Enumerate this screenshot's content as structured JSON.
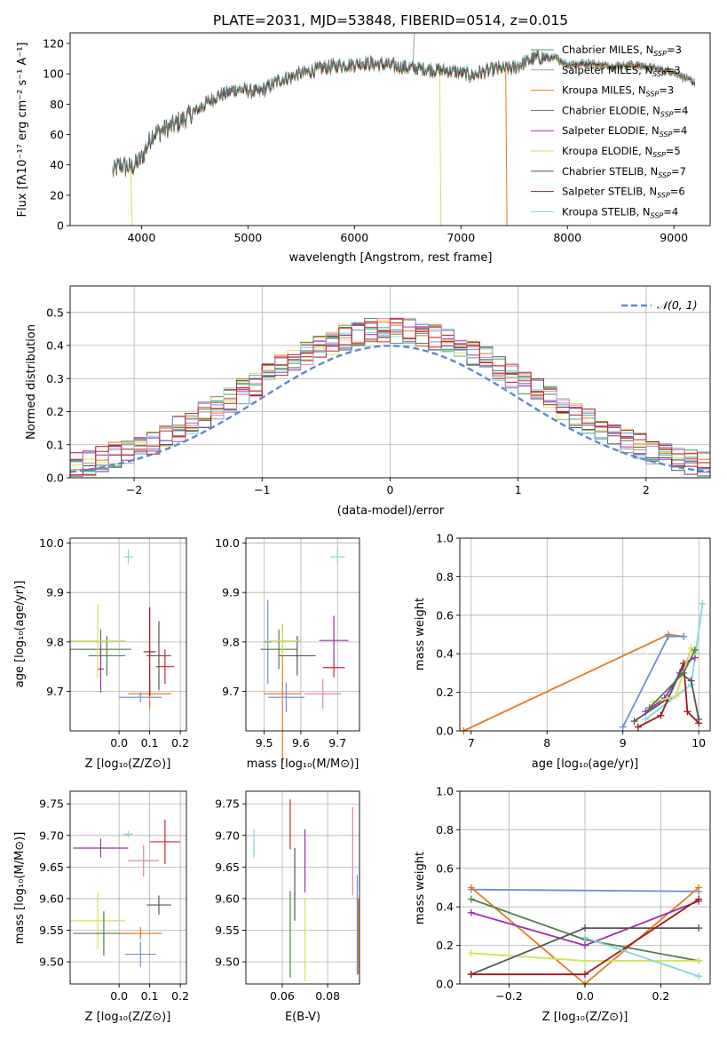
{
  "figure": {
    "title": "PLATE=2031, MJD=53848, FIBERID=0514, z=0.015"
  },
  "colors": {
    "Chabrier MILES": "#4a9a6a",
    "Salpeter MILES": "#9e9ea0",
    "Kroupa MILES": "#e07b20",
    "Chabrier ELODIE": "#4f7f4a",
    "Salpeter ELODIE": "#9b30a8",
    "Kroupa ELODIE": "#d4e156",
    "Chabrier STELIB": "#555555",
    "Salpeter STELIB": "#a01818",
    "Kroupa STELIB": "#7fd8d8",
    "extra1": "#6a8fdc",
    "extra2": "#e47fb0",
    "extra3": "#c82a2a",
    "gauss": "#5b87d6"
  },
  "chart_data": [
    {
      "id": "spectrum",
      "type": "line",
      "title": "PLATE=2031, MJD=53848, FIBERID=0514, z=0.015",
      "xlabel": "wavelength [Angstrom, rest frame]",
      "ylabel": "Flux [fλ10⁻¹⁷ erg cm⁻² s⁻¹ A⁻¹]",
      "xlim": [
        3330,
        9340
      ],
      "ylim": [
        0,
        127
      ],
      "xticks": [
        4000,
        5000,
        6000,
        7000,
        8000,
        9000
      ],
      "yticks": [
        0,
        20,
        40,
        60,
        80,
        100,
        120
      ],
      "legend": [
        "Chabrier MILES, N_SSP=3",
        "Salpeter MILES, N_SSP=3",
        "Kroupa MILES, N_SSP=3",
        "Chabrier ELODIE, N_SSP=4",
        "Salpeter ELODIE, N_SSP=4",
        "Kroupa ELODIE, N_SSP=5",
        "Chabrier STELIB, N_SSP=7",
        "Salpeter STELIB, N_SSP=6",
        "Kroupa STELIB, N_SSP=4"
      ],
      "legend_main": [
        "Chabrier MILES, N",
        "Salpeter MILES, N",
        "Kroupa MILES, N",
        "Chabrier ELODIE, N",
        "Salpeter ELODIE, N",
        "Kroupa ELODIE, N",
        "Chabrier STELIB, N",
        "Salpeter STELIB, N",
        "Kroupa STELIB, N"
      ],
      "legend_sub": "SSP",
      "legend_val": [
        "=3",
        "=3",
        "=3",
        "=4",
        "=4",
        "=5",
        "=7",
        "=6",
        "=4"
      ],
      "legend_placement": "upper right",
      "continuum": [
        [
          3730,
          35
        ],
        [
          3800,
          40
        ],
        [
          3900,
          38
        ],
        [
          4000,
          44
        ],
        [
          4100,
          60
        ],
        [
          4300,
          66
        ],
        [
          4500,
          75
        ],
        [
          4700,
          85
        ],
        [
          4900,
          90
        ],
        [
          5100,
          88
        ],
        [
          5300,
          96
        ],
        [
          5500,
          100
        ],
        [
          5700,
          104
        ],
        [
          5900,
          106
        ],
        [
          6100,
          107
        ],
        [
          6300,
          106
        ],
        [
          6500,
          104
        ],
        [
          6700,
          103
        ],
        [
          6900,
          102
        ],
        [
          7100,
          99
        ],
        [
          7300,
          103
        ],
        [
          7500,
          104
        ],
        [
          7700,
          111
        ],
        [
          7900,
          110
        ],
        [
          8000,
          106
        ],
        [
          8200,
          107
        ],
        [
          8400,
          105
        ],
        [
          8600,
          106
        ],
        [
          8800,
          104
        ],
        [
          9000,
          101
        ],
        [
          9200,
          94
        ]
      ],
      "spikes": [
        [
          3900,
          0
        ],
        [
          6550,
          127
        ],
        [
          6800,
          0
        ],
        [
          7420,
          0
        ]
      ]
    },
    {
      "id": "residuals",
      "type": "bar",
      "xlabel": "(data-model)/error",
      "ylabel": "Normed distribution",
      "xlim": [
        -2.5,
        2.5
      ],
      "ylim": [
        0,
        0.58
      ],
      "xticks": [
        -2,
        -1,
        0,
        1,
        2
      ],
      "xtick_labels": [
        "−2",
        "−1",
        "0",
        "1",
        "2"
      ],
      "yticks": [
        0,
        0.1,
        0.2,
        0.3,
        0.4,
        0.5
      ],
      "ytick_labels": [
        "0.0",
        "0.1",
        "0.2",
        "0.3",
        "0.4",
        "0.5"
      ],
      "bin_width": 0.1,
      "legend": "𝒩(0, 1)",
      "legend_placement": "upper right"
    },
    {
      "id": "age_vs_Z",
      "type": "scatter",
      "xlabel": "Z [log₁₀(Z/Z⊙)]",
      "ylabel": "age  [log₁₀(age/yr)]",
      "xlim": [
        -0.16,
        0.22
      ],
      "ylim": [
        9.62,
        10.01
      ],
      "xticks": [
        0.0,
        0.1,
        0.2
      ],
      "xtick_labels": [
        "0.0",
        "0.1",
        "0.2"
      ],
      "yticks": [
        9.7,
        9.8,
        9.9,
        10.0
      ],
      "ytick_labels": [
        "9.7",
        "9.8",
        "9.9",
        "10.0"
      ],
      "points": [
        {
          "x": 0.03,
          "y": 9.972,
          "xe": 0.015,
          "ye": 0.03,
          "c": "Kroupa STELIB"
        },
        {
          "x": 0.1,
          "y": 9.695,
          "xe": 0.07,
          "ye": 0.06,
          "c": "Kroupa MILES"
        },
        {
          "x": 0.1,
          "y": 9.78,
          "xe": 0.02,
          "ye": 0.18,
          "c": "Salpeter STELIB"
        },
        {
          "x": 0.15,
          "y": 9.75,
          "xe": 0.03,
          "ye": 0.07,
          "c": "extra3"
        },
        {
          "x": 0.13,
          "y": 9.772,
          "xe": 0.04,
          "ye": 0.14,
          "c": "Chabrier STELIB"
        },
        {
          "x": 0.07,
          "y": 9.688,
          "xe": 0.07,
          "ye": 0.02,
          "c": "extra1"
        },
        {
          "x": -0.04,
          "y": 9.772,
          "xe": 0.06,
          "ye": 0.08,
          "c": "Chabrier ELODIE"
        },
        {
          "x": -0.06,
          "y": 9.785,
          "xe": 0.1,
          "ye": 0.08,
          "c": "Chabrier ELODIE"
        },
        {
          "x": -0.06,
          "y": 9.745,
          "xe": 0.01,
          "ye": 0.095,
          "c": "Salpeter ELODIE"
        },
        {
          "x": -0.07,
          "y": 9.802,
          "xe": 0.09,
          "ye": 0.15,
          "c": "Kroupa ELODIE"
        }
      ]
    },
    {
      "id": "age_vs_mass",
      "type": "scatter",
      "xlabel": "mass [log₁₀(M/M⊙)]",
      "ylabel": "",
      "xlim": [
        9.45,
        9.76
      ],
      "ylim": [
        9.62,
        10.01
      ],
      "xticks": [
        9.5,
        9.6,
        9.7
      ],
      "xtick_labels": [
        "9.5",
        "9.6",
        "9.7"
      ],
      "yticks": [
        9.7,
        9.8,
        9.9,
        10.0
      ],
      "ytick_labels": [
        "9.7",
        "9.8",
        "9.9",
        "10.0"
      ],
      "points": [
        {
          "x": 9.7,
          "y": 9.972,
          "xe": 0.02,
          "ye": 0.03,
          "c": "Kroupa STELIB"
        },
        {
          "x": 9.55,
          "y": 9.695,
          "xe": 0.05,
          "ye": 0.28,
          "c": "Kroupa MILES"
        },
        {
          "x": 9.51,
          "y": 9.8,
          "xe": 0.01,
          "ye": 0.17,
          "c": "extra1"
        },
        {
          "x": 9.69,
          "y": 9.748,
          "xe": 0.03,
          "ye": 0.04,
          "c": "extra3"
        },
        {
          "x": 9.69,
          "y": 9.803,
          "xe": 0.04,
          "ye": 0.1,
          "c": "Salpeter ELODIE"
        },
        {
          "x": 9.59,
          "y": 9.772,
          "xe": 0.05,
          "ye": 0.08,
          "c": "Chabrier STELIB"
        },
        {
          "x": 9.54,
          "y": 9.785,
          "xe": 0.05,
          "ye": 0.08,
          "c": "Chabrier ELODIE"
        },
        {
          "x": 9.55,
          "y": 9.802,
          "xe": 0.05,
          "ye": 0.06,
          "c": "Kroupa ELODIE"
        },
        {
          "x": 9.66,
          "y": 9.695,
          "xe": 0.05,
          "ye": 0.06,
          "c": "extra2"
        },
        {
          "x": 9.56,
          "y": 9.688,
          "xe": 0.05,
          "ye": 0.06,
          "c": "extra1"
        }
      ]
    },
    {
      "id": "mw_vs_age",
      "type": "line",
      "xlabel": "age  [log₁₀(age/yr)]",
      "ylabel": "mass weight",
      "xlim": [
        6.85,
        10.15
      ],
      "ylim": [
        0,
        1
      ],
      "xticks": [
        7,
        8,
        9,
        10
      ],
      "yticks": [
        0,
        0.2,
        0.4,
        0.6,
        0.8,
        1.0
      ],
      "ytick_labels": [
        "0.0",
        "0.2",
        "0.4",
        "0.6",
        "0.8",
        "1.0"
      ],
      "series": [
        {
          "c": "Kroupa MILES",
          "pts": [
            [
              6.9,
              0.0
            ],
            [
              9.6,
              0.5
            ],
            [
              9.8,
              0.49
            ]
          ]
        },
        {
          "c": "extra1",
          "pts": [
            [
              9.0,
              0.02
            ],
            [
              9.6,
              0.49
            ],
            [
              9.8,
              0.49
            ]
          ]
        },
        {
          "c": "Kroupa STELIB",
          "pts": [
            [
              9.3,
              0.06
            ],
            [
              9.9,
              0.24
            ],
            [
              10.05,
              0.66
            ]
          ]
        },
        {
          "c": "Salpeter STELIB",
          "pts": [
            [
              9.2,
              0.02
            ],
            [
              9.5,
              0.08
            ],
            [
              9.8,
              0.35
            ],
            [
              9.85,
              0.1
            ],
            [
              10.0,
              0.04
            ]
          ]
        },
        {
          "c": "Chabrier STELIB",
          "pts": [
            [
              9.15,
              0.05
            ],
            [
              9.6,
              0.17
            ],
            [
              9.75,
              0.3
            ],
            [
              9.9,
              0.26
            ],
            [
              10.0,
              0.06
            ]
          ]
        },
        {
          "c": "Salpeter ELODIE",
          "pts": [
            [
              9.3,
              0.1
            ],
            [
              9.55,
              0.17
            ],
            [
              9.85,
              0.36
            ],
            [
              9.95,
              0.38
            ]
          ]
        },
        {
          "c": "Kroupa ELODIE",
          "pts": [
            [
              9.4,
              0.15
            ],
            [
              9.7,
              0.18
            ],
            [
              9.9,
              0.43
            ],
            [
              9.95,
              0.41
            ]
          ]
        },
        {
          "c": "Chabrier ELODIE",
          "pts": [
            [
              9.35,
              0.12
            ],
            [
              9.8,
              0.3
            ],
            [
              9.95,
              0.42
            ]
          ]
        }
      ]
    },
    {
      "id": "mass_vs_Z",
      "type": "scatter",
      "xlabel": "Z [log₁₀(Z/Z⊙)]",
      "ylabel": "mass [log₁₀(M/M⊙)]",
      "xlim": [
        -0.16,
        0.22
      ],
      "ylim": [
        9.465,
        9.77
      ],
      "xticks": [
        0.0,
        0.1,
        0.2
      ],
      "xtick_labels": [
        "0.0",
        "0.1",
        "0.2"
      ],
      "yticks": [
        9.5,
        9.55,
        9.6,
        9.65,
        9.7,
        9.75
      ],
      "ytick_labels": [
        "9.50",
        "9.55",
        "9.60",
        "9.65",
        "9.70",
        "9.75"
      ],
      "points": [
        {
          "x": 0.03,
          "y": 9.702,
          "xe": 0.015,
          "ye": 0.01,
          "c": "Kroupa STELIB"
        },
        {
          "x": 0.15,
          "y": 9.69,
          "xe": 0.05,
          "ye": 0.07,
          "c": "extra3"
        },
        {
          "x": 0.08,
          "y": 9.66,
          "xe": 0.05,
          "ye": 0.05,
          "c": "extra2"
        },
        {
          "x": -0.06,
          "y": 9.68,
          "xe": 0.09,
          "ye": 0.03,
          "c": "Salpeter ELODIE"
        },
        {
          "x": 0.13,
          "y": 9.59,
          "xe": 0.04,
          "ye": 0.03,
          "c": "Chabrier STELIB"
        },
        {
          "x": -0.07,
          "y": 9.565,
          "xe": 0.09,
          "ye": 0.09,
          "c": "Kroupa ELODIE"
        },
        {
          "x": -0.05,
          "y": 9.545,
          "xe": 0.1,
          "ye": 0.07,
          "c": "Chabrier ELODIE"
        },
        {
          "x": 0.07,
          "y": 9.545,
          "xe": 0.07,
          "ye": 0.02,
          "c": "Kroupa MILES"
        },
        {
          "x": 0.07,
          "y": 9.512,
          "xe": 0.05,
          "ye": 0.04,
          "c": "extra1"
        }
      ]
    },
    {
      "id": "mass_vs_ebv",
      "type": "scatter",
      "xlabel": "E(B-V)",
      "ylabel": "",
      "xlim": [
        0.044,
        0.094
      ],
      "ylim": [
        9.465,
        9.77
      ],
      "xticks": [
        0.06,
        0.08
      ],
      "xtick_labels": [
        "0.06",
        "0.08"
      ],
      "yticks": [
        9.5,
        9.55,
        9.6,
        9.65,
        9.7,
        9.75
      ],
      "ytick_labels": [
        "9.50",
        "9.55",
        "9.60",
        "9.65",
        "9.70",
        "9.75"
      ],
      "vbars": [
        {
          "x": 0.0475,
          "y1": 9.665,
          "y2": 9.71,
          "c": "Kroupa STELIB"
        },
        {
          "x": 0.0635,
          "y1": 9.678,
          "y2": 9.757,
          "c": "extra3"
        },
        {
          "x": 0.0635,
          "y1": 9.475,
          "y2": 9.612,
          "c": "Chabrier ELODIE"
        },
        {
          "x": 0.0655,
          "y1": 9.565,
          "y2": 9.68,
          "c": "Chabrier STELIB"
        },
        {
          "x": 0.07,
          "y1": 9.61,
          "y2": 9.71,
          "c": "Salpeter ELODIE"
        },
        {
          "x": 0.07,
          "y1": 9.47,
          "y2": 9.6,
          "c": "Kroupa ELODIE"
        },
        {
          "x": 0.091,
          "y1": 9.605,
          "y2": 9.745,
          "c": "extra2"
        },
        {
          "x": 0.093,
          "y1": 9.48,
          "y2": 9.637,
          "c": "extra1"
        },
        {
          "x": 0.0935,
          "y1": 9.48,
          "y2": 9.6,
          "c": "Kroupa MILES"
        }
      ]
    },
    {
      "id": "mw_vs_Z",
      "type": "line",
      "xlabel": "Z [log₁₀(Z/Z⊙)]",
      "ylabel": "mass weight",
      "xlim": [
        -0.33,
        0.33
      ],
      "ylim": [
        0,
        1
      ],
      "xticks": [
        -0.2,
        0.0,
        0.2
      ],
      "xtick_labels": [
        "−0.2",
        "0.0",
        "0.2"
      ],
      "yticks": [
        0,
        0.2,
        0.4,
        0.6,
        0.8,
        1.0
      ],
      "ytick_labels": [
        "0.0",
        "0.2",
        "0.4",
        "0.6",
        "0.8",
        "1.0"
      ],
      "series": [
        {
          "c": "extra1",
          "pts": [
            [
              -0.3,
              0.49
            ],
            [
              0.3,
              0.48
            ]
          ]
        },
        {
          "c": "Kroupa MILES",
          "pts": [
            [
              -0.3,
              0.5
            ],
            [
              0.0,
              0.0
            ],
            [
              0.3,
              0.5
            ]
          ]
        },
        {
          "c": "Chabrier ELODIE",
          "pts": [
            [
              -0.3,
              0.44
            ],
            [
              0.0,
              0.23
            ],
            [
              0.3,
              0.12
            ]
          ]
        },
        {
          "c": "Salpeter ELODIE",
          "pts": [
            [
              -0.3,
              0.37
            ],
            [
              0.0,
              0.2
            ],
            [
              0.3,
              0.43
            ]
          ]
        },
        {
          "c": "Kroupa ELODIE",
          "pts": [
            [
              -0.3,
              0.16
            ],
            [
              0.0,
              0.12
            ],
            [
              0.3,
              0.12
            ]
          ]
        },
        {
          "c": "Chabrier STELIB",
          "pts": [
            [
              -0.3,
              0.05
            ],
            [
              0.0,
              0.29
            ],
            [
              0.3,
              0.29
            ]
          ]
        },
        {
          "c": "Salpeter STELIB",
          "pts": [
            [
              -0.3,
              0.05
            ],
            [
              0.0,
              0.05
            ],
            [
              0.3,
              0.44
            ]
          ]
        },
        {
          "c": "Kroupa STELIB",
          "pts": [
            [
              0.0,
              0.24
            ],
            [
              0.3,
              0.04
            ]
          ]
        }
      ]
    }
  ]
}
